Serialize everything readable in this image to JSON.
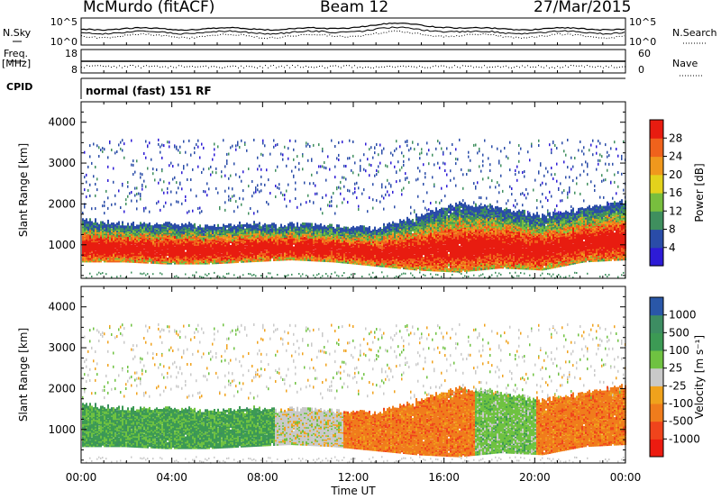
{
  "header": {
    "station": "McMurdo (fitACF)",
    "beam": "Beam 12",
    "date": "27/Mar/2015"
  },
  "aux": {
    "nsky_label": "N.Sky",
    "nsearch_label": "N.Search",
    "nsky_ticks": [
      "10^5",
      "10^0"
    ],
    "nsearch_ticks": [
      "10^5",
      "10^0"
    ],
    "freq_label_1": "Freq.",
    "freq_label_2": "[MHz]",
    "freq_ticks": [
      "18",
      "8"
    ],
    "nave_label": "Nave",
    "nave_ticks": [
      "60",
      "0"
    ],
    "cpid_label": "CPID",
    "cpid_text": "normal (fast) 151 RF"
  },
  "colors": {
    "power": [
      "#2d1bd6",
      "#2a4ca8",
      "#3f8f5e",
      "#78be3e",
      "#e3d21c",
      "#f0981d",
      "#f0621c",
      "#e81c10",
      "#e81c10"
    ],
    "velocity": [
      "#ec1b10",
      "#f0441c",
      "#f07c1c",
      "#f0a21c",
      "#c9c9c9",
      "#6fc241",
      "#3c9a54",
      "#3d8d62",
      "#2a57a8",
      "#3030c8"
    ]
  },
  "chart_data": [
    {
      "type": "heatmap",
      "name": "Power",
      "ylabel": "Slant Range [km]",
      "xlabel": "",
      "x_ticks": [
        "00:00",
        "04:00",
        "08:00",
        "12:00",
        "16:00",
        "20:00",
        "00:00"
      ],
      "xlim_hours": [
        0,
        24
      ],
      "ylim": [
        180,
        4500
      ],
      "y_ticks": [
        1000,
        2000,
        3000,
        4000
      ],
      "colorbar": {
        "label": "Power [dB]",
        "ticks": [
          4,
          8,
          12,
          16,
          20,
          24,
          28
        ],
        "range": [
          0,
          30
        ]
      },
      "features": [
        {
          "desc": "main_echo",
          "h0": 0,
          "h1": 24,
          "low_km": [
            600,
            600,
            550,
            550,
            600,
            650,
            600,
            500,
            400,
            350,
            450,
            400,
            600,
            650
          ],
          "high_km": [
            1600,
            1500,
            1500,
            1450,
            1500,
            1500,
            1450,
            1400,
            1700,
            2000,
            1900,
            1700,
            1900,
            2100
          ]
        },
        {
          "desc": "sparse_upper",
          "h0": 0,
          "h1": 24,
          "range_km": [
            1800,
            3600
          ]
        },
        {
          "desc": "near_range_strip",
          "h0": 0,
          "h1": 24,
          "range_km": [
            180,
            350
          ]
        }
      ]
    },
    {
      "type": "heatmap",
      "name": "Velocity",
      "ylabel": "Slant Range [km]",
      "xlabel": "Time UT",
      "x_ticks": [
        "00:00",
        "04:00",
        "08:00",
        "12:00",
        "16:00",
        "20:00",
        "00:00"
      ],
      "xlim_hours": [
        0,
        24
      ],
      "ylim": [
        180,
        4500
      ],
      "y_ticks": [
        1000,
        2000,
        3000,
        4000
      ],
      "colorbar": {
        "label": "Velocity [m s⁻¹]",
        "ticks": [
          "-1000",
          "-500",
          "-100",
          "-25",
          "25",
          "100",
          "500",
          "1000"
        ],
        "classes": [
          "-1000",
          "-500",
          "-100",
          "-25",
          "25",
          "100",
          "500",
          "1000"
        ]
      },
      "segments": [
        {
          "h0": 0,
          "h1": 8.5,
          "dominant": "100 to 500",
          "color_class": 6
        },
        {
          "h0": 8.5,
          "h1": 11.5,
          "dominant": "-25 to 25",
          "color_class": 4
        },
        {
          "h0": 11.5,
          "h1": 17.3,
          "dominant": "-500 to -100",
          "color_class": 2
        },
        {
          "h0": 17.3,
          "h1": 20.0,
          "dominant": "25 to 500",
          "color_class": 5
        },
        {
          "h0": 20.0,
          "h1": 24,
          "dominant": "-500 to -100",
          "color_class": 2
        }
      ]
    }
  ]
}
